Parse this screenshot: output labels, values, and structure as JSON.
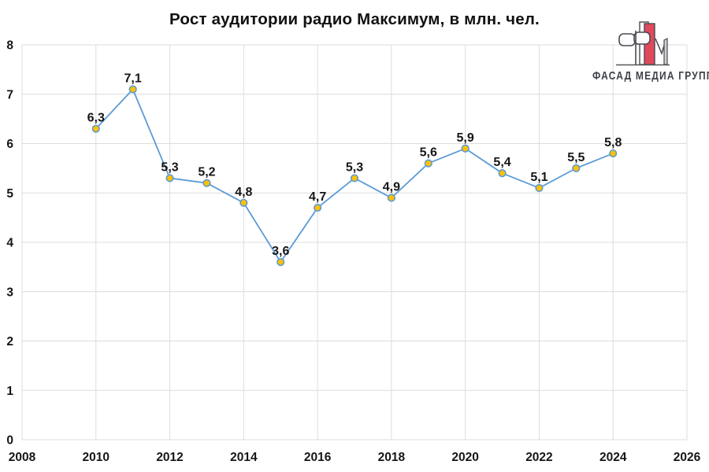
{
  "title": "Рост аудитории радио Максимум, в млн. чел.",
  "logo": {
    "text": "ФАСАД МЕДИА ГРУПП",
    "red": "#E2485C",
    "outline": "#4A4B50",
    "gray": "#D0D1D3",
    "text_color": "#3E4149"
  },
  "chart_data": {
    "type": "line",
    "title": "Рост аудитории радио Максимум, в млн. чел.",
    "x": [
      2010,
      2011,
      2012,
      2013,
      2014,
      2015,
      2016,
      2017,
      2018,
      2019,
      2020,
      2021,
      2022,
      2023,
      2024
    ],
    "values": [
      6.3,
      7.1,
      5.3,
      5.2,
      4.8,
      3.6,
      4.7,
      5.3,
      4.9,
      5.6,
      5.9,
      5.4,
      5.1,
      5.5,
      5.8
    ],
    "point_labels": [
      "6,3",
      "7,1",
      "5,3",
      "5,2",
      "4,8",
      "3,6",
      "4,7",
      "5,3",
      "4,9",
      "5,6",
      "5,9",
      "5,4",
      "5,1",
      "5,5",
      "5,8"
    ],
    "xlabel": "",
    "ylabel": "",
    "xlim": [
      2008,
      2026
    ],
    "ylim": [
      0,
      8
    ],
    "x_ticks": [
      2008,
      2010,
      2012,
      2014,
      2016,
      2018,
      2020,
      2022,
      2024,
      2026
    ],
    "y_ticks": [
      0,
      1,
      2,
      3,
      4,
      5,
      6,
      7,
      8
    ],
    "grid": true,
    "legend": "none",
    "line_color": "#5B9BD5",
    "marker_fill": "#FFC000",
    "marker_stroke": "#5B9BD5",
    "grid_color": "#DCDCDC",
    "text_color": "#161616"
  }
}
